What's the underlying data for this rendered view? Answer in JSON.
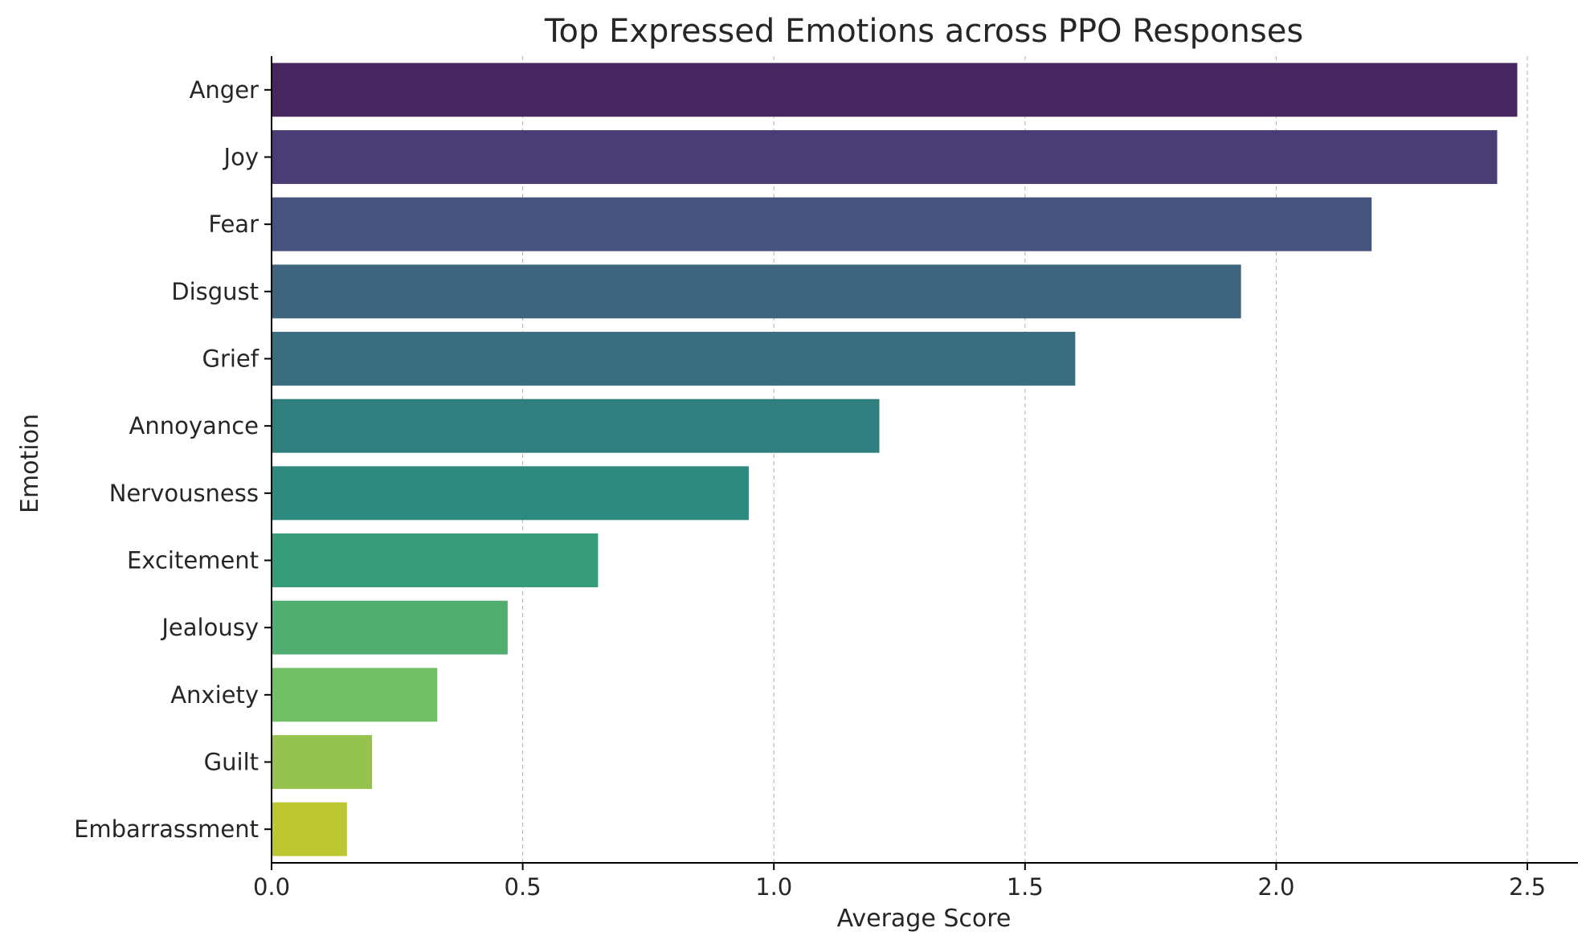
{
  "chart_data": {
    "type": "bar",
    "orientation": "horizontal",
    "title": "Top Expressed Emotions across PPO Responses",
    "xlabel": "Average Score",
    "ylabel": "Emotion",
    "xlim": [
      0,
      2.6
    ],
    "xticks": [
      0.0,
      0.5,
      1.0,
      1.5,
      2.0,
      2.5
    ],
    "xtick_labels": [
      "0.0",
      "0.5",
      "1.0",
      "1.5",
      "2.0",
      "2.5"
    ],
    "grid": "x-dashed",
    "categories": [
      "Anger",
      "Joy",
      "Fear",
      "Disgust",
      "Grief",
      "Annoyance",
      "Nervousness",
      "Excitement",
      "Jealousy",
      "Anxiety",
      "Guilt",
      "Embarrassment"
    ],
    "values": [
      2.48,
      2.44,
      2.19,
      1.93,
      1.6,
      1.21,
      0.95,
      0.65,
      0.47,
      0.33,
      0.2,
      0.15
    ],
    "colors": [
      "#46265f",
      "#4a3d76",
      "#46537e",
      "#3f6480",
      "#386e80",
      "#317e7f",
      "#2e897e",
      "#369c79",
      "#51ad70",
      "#73bf65",
      "#96c350",
      "#bcc731"
    ]
  }
}
